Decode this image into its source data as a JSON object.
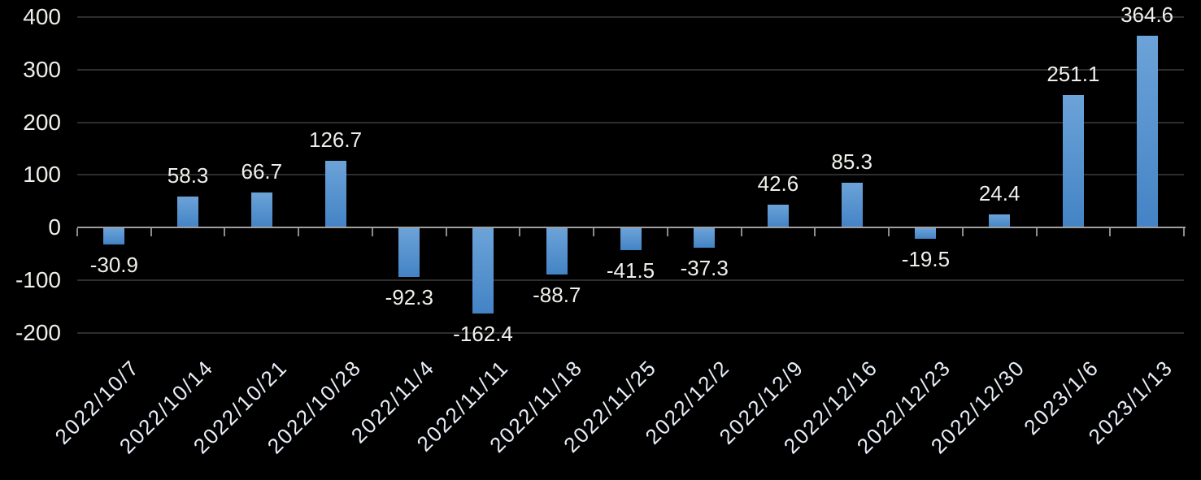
{
  "chart_data": {
    "type": "bar",
    "title": "",
    "xlabel": "",
    "ylabel": "",
    "categories": [
      "2022/10/7",
      "2022/10/14",
      "2022/10/21",
      "2022/10/28",
      "2022/11/4",
      "2022/11/11",
      "2022/11/18",
      "2022/11/25",
      "2022/12/2",
      "2022/12/9",
      "2022/12/16",
      "2022/12/23",
      "2022/12/30",
      "2023/1/6",
      "2023/1/13"
    ],
    "values": [
      -30.9,
      58.3,
      66.7,
      126.7,
      -92.3,
      -162.4,
      -88.7,
      -41.5,
      -37.3,
      42.6,
      85.3,
      -19.5,
      24.4,
      251.1,
      364.6
    ],
    "y_ticks": [
      400,
      300,
      200,
      100,
      0,
      -100,
      -200
    ],
    "ylim": [
      -200,
      400
    ],
    "grid": true,
    "legend": false,
    "data_labels_visible": true,
    "x_label_rotation_deg": 45,
    "colors": {
      "background": "#000000",
      "bar_gradient_top": "#6ca3d8",
      "bar_gradient_bottom": "#4383c5",
      "gridline": "#2d2d2d",
      "axis_line": "#a0a0a0",
      "tick": "#8c8c8c",
      "value_label": "#f0efeb",
      "y_tick_label": "#efeee9",
      "x_tick_label": "#e8eef7"
    }
  }
}
